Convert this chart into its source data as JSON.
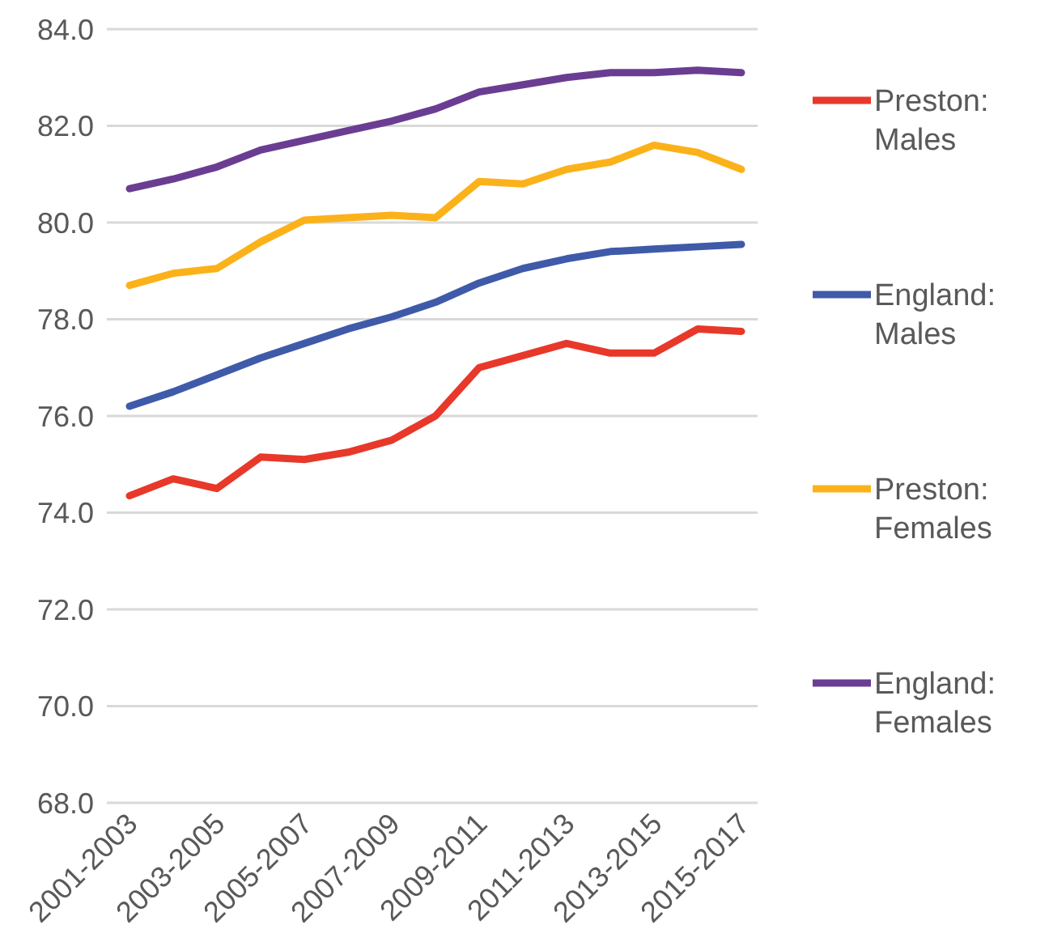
{
  "chart_data": {
    "type": "line",
    "categories": [
      "2001-2003",
      null,
      "2003-2005",
      null,
      "2005-2007",
      null,
      "2007-2009",
      null,
      "2009-2011",
      null,
      "2011-2013",
      null,
      "2013-2015",
      null,
      "2015-2017"
    ],
    "series": [
      {
        "name": "Preston: Males",
        "color": "#e8382a",
        "values": [
          74.35,
          74.7,
          74.5,
          75.15,
          75.1,
          75.25,
          75.5,
          76.0,
          77.0,
          77.25,
          77.5,
          77.3,
          77.3,
          77.8,
          77.75
        ]
      },
      {
        "name": "England: Males",
        "color": "#3f5aa9",
        "values": [
          76.2,
          76.5,
          76.85,
          77.2,
          77.5,
          77.8,
          78.05,
          78.35,
          78.75,
          79.05,
          79.25,
          79.4,
          79.45,
          79.5,
          79.55
        ]
      },
      {
        "name": "Preston: Females",
        "color": "#fbb21a",
        "values": [
          78.7,
          78.95,
          79.05,
          79.6,
          80.05,
          80.1,
          80.15,
          80.1,
          80.85,
          80.8,
          81.1,
          81.25,
          81.6,
          81.45,
          81.1
        ]
      },
      {
        "name": "England: Females",
        "color": "#6a3d92",
        "values": [
          80.7,
          80.9,
          81.15,
          81.5,
          81.7,
          81.9,
          82.1,
          82.35,
          82.7,
          82.85,
          83.0,
          83.1,
          83.1,
          83.15,
          83.1
        ]
      }
    ],
    "ylim": [
      68,
      84
    ],
    "yticks": [
      {
        "value": 68,
        "label": "68.0"
      },
      {
        "value": 70,
        "label": "70.0"
      },
      {
        "value": 72,
        "label": "72.0"
      },
      {
        "value": 74,
        "label": "74.0"
      },
      {
        "value": 76,
        "label": "76.0"
      },
      {
        "value": 78,
        "label": "78.0"
      },
      {
        "value": 80,
        "label": "80.0"
      },
      {
        "value": 82,
        "label": "82.0"
      },
      {
        "value": 84,
        "label": "84.0"
      }
    ],
    "grid": "y",
    "legend": "right",
    "marker": "none",
    "line_style": "solid"
  }
}
